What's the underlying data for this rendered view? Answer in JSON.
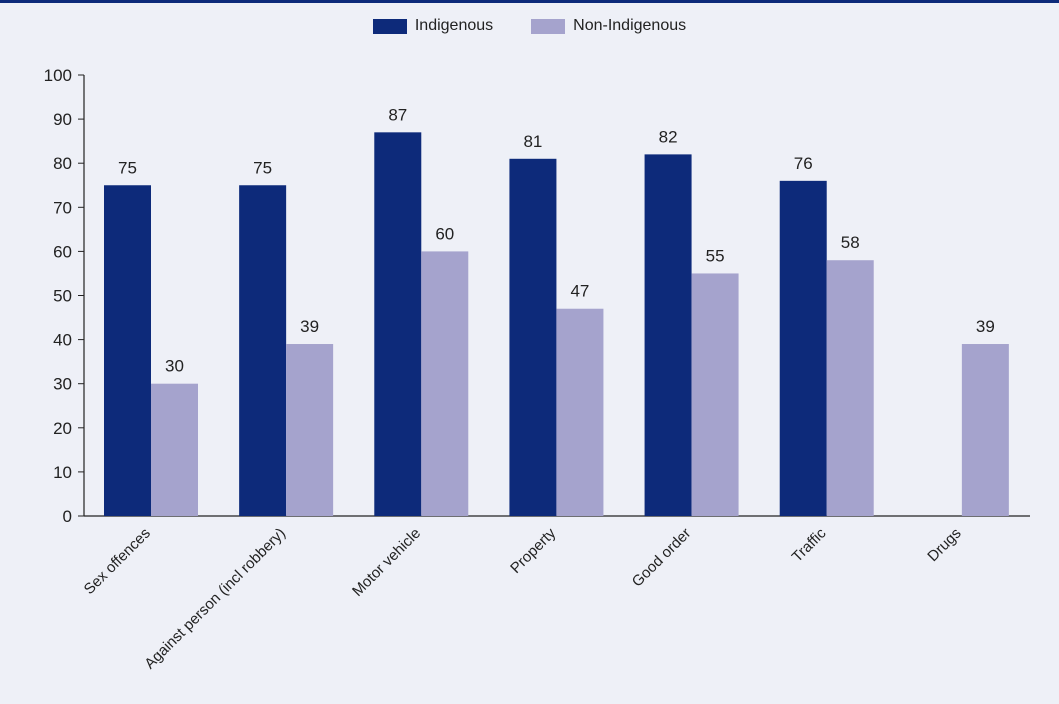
{
  "chart_data": {
    "type": "bar",
    "categories": [
      "Sex offences",
      "Against person (incl robbery)",
      "Motor vehicle",
      "Property",
      "Good order",
      "Traffic",
      "Drugs"
    ],
    "series": [
      {
        "name": "Indigenous",
        "color": "#0d2a7a",
        "values": [
          75,
          75,
          87,
          81,
          82,
          76,
          null
        ]
      },
      {
        "name": "Non-Indigenous",
        "color": "#a5a3cd",
        "values": [
          30,
          39,
          60,
          47,
          55,
          58,
          39
        ]
      }
    ],
    "title": "",
    "xlabel": "",
    "ylabel": "",
    "ylim": [
      0,
      100
    ],
    "yticks": [
      0,
      10,
      20,
      30,
      40,
      50,
      60,
      70,
      80,
      90,
      100
    ],
    "legend_position": "top-center",
    "grid": false
  }
}
